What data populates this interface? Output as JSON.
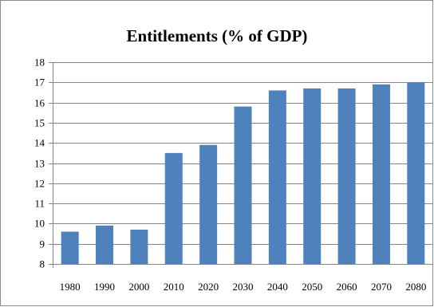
{
  "chart_data": {
    "type": "bar",
    "title": "Entitlements (% of GDP)",
    "xlabel": "",
    "ylabel": "",
    "categories": [
      "1980",
      "1990",
      "2000",
      "2010",
      "2020",
      "2030",
      "2040",
      "2050",
      "2060",
      "2070",
      "2080"
    ],
    "values": [
      9.6,
      9.9,
      9.7,
      13.5,
      13.9,
      15.8,
      16.6,
      16.7,
      16.7,
      16.9,
      17.0
    ],
    "ylim": [
      8,
      18
    ],
    "yticks": [
      "8",
      "9",
      "10",
      "11",
      "12",
      "13",
      "14",
      "15",
      "16",
      "17",
      "18"
    ],
    "grid": true,
    "legend": "none",
    "bar_color": "#4f81bd",
    "gridline_color": "#868686"
  }
}
